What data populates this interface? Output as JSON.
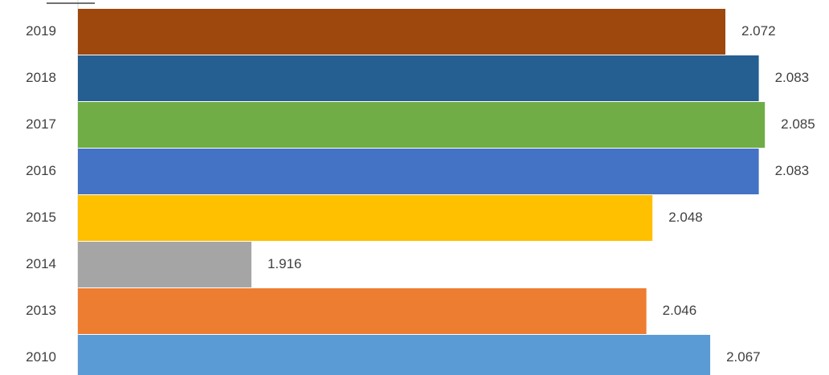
{
  "chart_data": {
    "type": "bar",
    "orientation": "horizontal",
    "categories": [
      "2019",
      "2018",
      "2017",
      "2016",
      "2015",
      "2014",
      "2013",
      "2010"
    ],
    "values": [
      2.072,
      2.083,
      2.085,
      2.083,
      2.048,
      1.916,
      2.046,
      2.067
    ],
    "value_labels": [
      "2.072",
      "2.083",
      "2.085",
      "2.083",
      "2.048",
      "1.916",
      "2.046",
      "2.067"
    ],
    "colors": [
      "#9E480E",
      "#255E91",
      "#70AD47",
      "#4472C4",
      "#FFC000",
      "#A5A5A5",
      "#ED7D31",
      "#5B9BD5"
    ],
    "xlim": [
      1.8589,
      2.0876
    ],
    "grid": false,
    "legend": "none"
  }
}
